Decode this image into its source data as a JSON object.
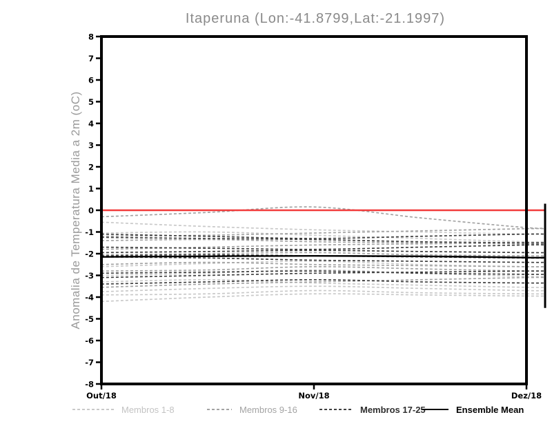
{
  "chart_data": {
    "type": "line",
    "title": "Itaperuna (Lon:-41.8799,Lat:-21.1997)",
    "ylabel": "Anomalia de Temperatura Media a 2m (oC)",
    "xlabel": "",
    "x_tick_labels": [
      "Out/18",
      "Nov/18",
      "Dez/18"
    ],
    "x_tick_positions": [
      0,
      0.5,
      1
    ],
    "x": [
      0,
      0.25,
      0.5,
      0.75,
      1
    ],
    "ylim": [
      -8,
      8
    ],
    "yticks": [
      -8,
      -7,
      -6,
      -5,
      -4,
      -3,
      -2,
      -1,
      0,
      1,
      2,
      3,
      4,
      5,
      6,
      7,
      8
    ],
    "grid": false,
    "legend_position": "bottom",
    "zero_line": {
      "value": 0,
      "color": "#f23c3c"
    },
    "groups": [
      {
        "name": "Membros 1-8",
        "color": "#c9c9c9",
        "style": "dashed"
      },
      {
        "name": "Membros 9-16",
        "color": "#a3a3a3",
        "style": "dashed"
      },
      {
        "name": "Membros 17-25",
        "color": "#404040",
        "style": "dashed"
      }
    ],
    "members": [
      {
        "group": 0,
        "values": [
          -0.55,
          -0.75,
          -0.9,
          -1.0,
          -1.1
        ]
      },
      {
        "group": 0,
        "values": [
          -1.05,
          -1.0,
          -1.15,
          -1.3,
          -1.45
        ]
      },
      {
        "group": 0,
        "values": [
          -2.6,
          -2.45,
          -2.35,
          -2.5,
          -2.6
        ]
      },
      {
        "group": 0,
        "values": [
          -3.0,
          -2.9,
          -2.75,
          -2.9,
          -3.05
        ]
      },
      {
        "group": 0,
        "values": [
          -3.3,
          -3.2,
          -3.35,
          -3.45,
          -3.55
        ]
      },
      {
        "group": 0,
        "values": [
          -3.75,
          -3.6,
          -3.5,
          -3.6,
          -3.7
        ]
      },
      {
        "group": 0,
        "values": [
          -3.9,
          -3.85,
          -3.7,
          -3.8,
          -3.85
        ]
      },
      {
        "group": 0,
        "values": [
          -4.2,
          -4.0,
          -3.85,
          -3.9,
          -3.95
        ]
      },
      {
        "group": 1,
        "values": [
          -0.3,
          -0.1,
          0.15,
          -0.35,
          -0.8
        ]
      },
      {
        "group": 1,
        "values": [
          -1.2,
          -1.15,
          -1.05,
          -0.95,
          -0.85
        ]
      },
      {
        "group": 1,
        "values": [
          -1.4,
          -1.35,
          -1.45,
          -1.5,
          -1.55
        ]
      },
      {
        "group": 1,
        "values": [
          -1.8,
          -1.7,
          -1.6,
          -1.55,
          -1.5
        ]
      },
      {
        "group": 1,
        "values": [
          -2.05,
          -2.0,
          -1.95,
          -2.05,
          -2.1
        ]
      },
      {
        "group": 1,
        "values": [
          -2.5,
          -2.4,
          -2.5,
          -2.55,
          -2.6
        ]
      },
      {
        "group": 1,
        "values": [
          -2.8,
          -2.75,
          -2.6,
          -2.7,
          -2.8
        ]
      },
      {
        "group": 1,
        "values": [
          -3.55,
          -3.4,
          -3.3,
          -3.2,
          -3.1
        ]
      },
      {
        "group": 2,
        "values": [
          -1.1,
          -1.2,
          -1.3,
          -1.2,
          -1.1
        ]
      },
      {
        "group": 2,
        "values": [
          -1.25,
          -1.3,
          -1.35,
          -1.45,
          -1.5
        ]
      },
      {
        "group": 2,
        "values": [
          -1.7,
          -1.75,
          -1.8,
          -1.7,
          -1.6
        ]
      },
      {
        "group": 2,
        "values": [
          -1.95,
          -1.9,
          -1.85,
          -1.9,
          -1.95
        ]
      },
      {
        "group": 2,
        "values": [
          -2.1,
          -2.05,
          -2.1,
          -2.15,
          -2.2
        ]
      },
      {
        "group": 2,
        "values": [
          -2.15,
          -2.2,
          -2.3,
          -2.35,
          -2.4
        ]
      },
      {
        "group": 2,
        "values": [
          -2.9,
          -2.85,
          -2.8,
          -2.9,
          -2.95
        ]
      },
      {
        "group": 2,
        "values": [
          -3.1,
          -3.0,
          -2.9,
          -2.85,
          -2.8
        ]
      },
      {
        "group": 2,
        "values": [
          -3.4,
          -3.3,
          -3.2,
          -3.3,
          -3.35
        ]
      }
    ],
    "ensemble_mean": {
      "name": "Ensemble Mean",
      "color": "#000000",
      "values": [
        -2.15,
        -2.12,
        -2.1,
        -2.12,
        -2.18
      ]
    }
  },
  "legend": {
    "items": [
      {
        "label": "Membros 1-8",
        "color": "#c9c9c9",
        "style": "dashed"
      },
      {
        "label": "Membros 9-16",
        "color": "#a3a3a3",
        "style": "dashed"
      },
      {
        "label": "Membros 17-25",
        "color": "#404040",
        "style": "dashed"
      },
      {
        "label": "Ensemble Mean",
        "color": "#000000",
        "style": "solid"
      }
    ]
  }
}
